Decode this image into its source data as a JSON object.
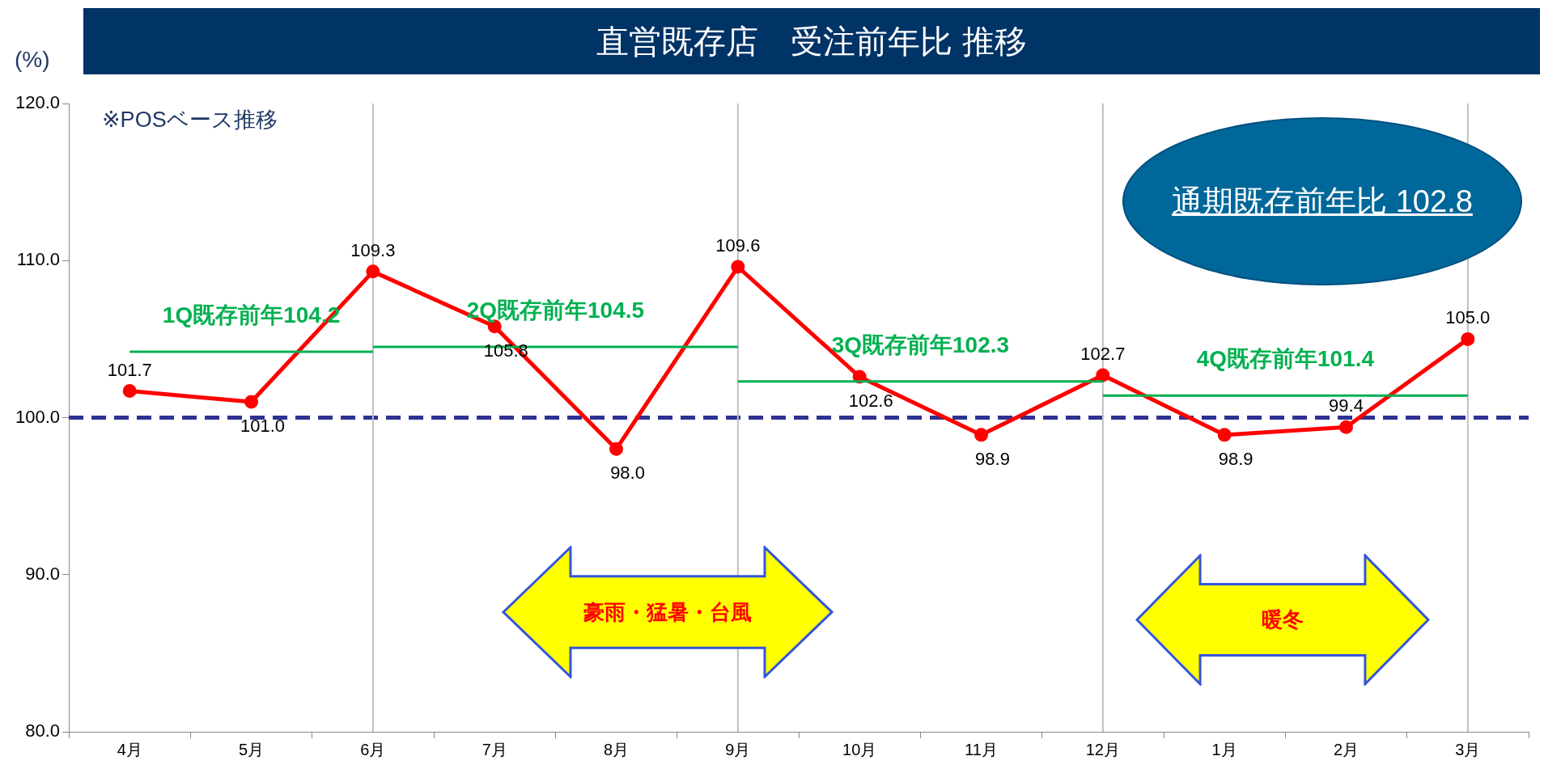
{
  "chart_data": {
    "type": "line",
    "title": "直営既存店　受注前年比 推移",
    "ylabel": "(%)",
    "categories": [
      "4月",
      "5月",
      "6月",
      "7月",
      "8月",
      "9月",
      "10月",
      "11月",
      "12月",
      "1月",
      "2月",
      "3月"
    ],
    "series": [
      {
        "type": "line",
        "color": "#ff0000",
        "marker": "circle",
        "values": [
          101.7,
          101.0,
          109.3,
          105.8,
          98.0,
          109.6,
          102.6,
          98.9,
          102.7,
          98.9,
          99.4,
          105.0
        ],
        "value_labels": [
          "101.7",
          "101.0",
          "109.3",
          "105.8",
          "98.0",
          "109.6",
          "102.6",
          "98.9",
          "102.7",
          "98.9",
          "99.4",
          "105.0"
        ]
      },
      {
        "type": "line",
        "name": "1Q既存前年104.2",
        "color": "#00b050",
        "marker": "none",
        "x": [
          "4月",
          "5月",
          "6月"
        ],
        "values": [
          104.2,
          104.2,
          104.2
        ]
      },
      {
        "type": "line",
        "name": "2Q既存前年104.5",
        "color": "#00b050",
        "marker": "none",
        "x": [
          "6月",
          "7月",
          "8月",
          "9月"
        ],
        "values": [
          104.5,
          104.5,
          104.5,
          104.5
        ]
      },
      {
        "type": "line",
        "name": "3Q既存前年102.3",
        "color": "#00b050",
        "marker": "none",
        "x": [
          "9月",
          "10月",
          "11月",
          "12月"
        ],
        "values": [
          102.3,
          102.3,
          102.3,
          102.3
        ]
      },
      {
        "type": "line",
        "name": "4Q既存前年101.4",
        "color": "#00b050",
        "marker": "none",
        "x": [
          "12月",
          "1月",
          "2月",
          "3月"
        ],
        "values": [
          101.4,
          101.4,
          101.4,
          101.4
        ]
      }
    ],
    "ylim": [
      80,
      120
    ],
    "yticks": [
      {
        "value": 80,
        "label": "80.0"
      },
      {
        "value": 90,
        "label": "90.0"
      },
      {
        "value": 100,
        "label": "100.0"
      },
      {
        "value": 110,
        "label": "110.0"
      },
      {
        "value": 120,
        "label": "120.0"
      }
    ],
    "grid": false,
    "legend": false,
    "ref_lines": [
      {
        "axis": "y",
        "value": 100,
        "color": "#2e3192",
        "line_style": "dashed"
      },
      {
        "axis": "x",
        "value": "6月",
        "color": "#bfbfbf"
      },
      {
        "axis": "x",
        "value": "9月",
        "color": "#bfbfbf"
      },
      {
        "axis": "x",
        "value": "12月",
        "color": "#bfbfbf"
      },
      {
        "axis": "x",
        "value": "3月",
        "color": "#bfbfbf"
      }
    ],
    "annotations": [
      "※POSベース推移",
      "通期既存前年比 102.8",
      "豪雨・猛暑・台風",
      "暖冬"
    ]
  }
}
